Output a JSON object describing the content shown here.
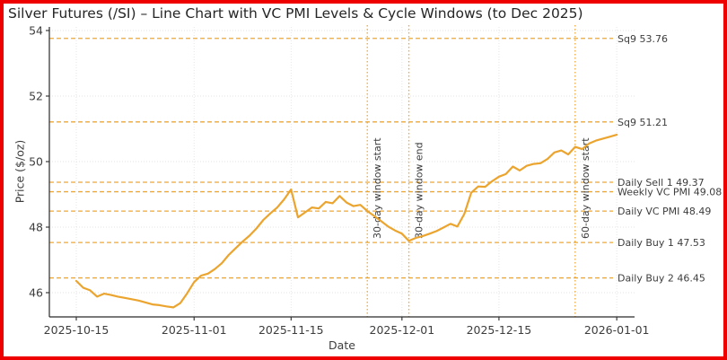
{
  "figure": {
    "border_color": "#ee0000",
    "background": "#ffffff"
  },
  "chart_data": {
    "type": "line",
    "title": "Silver Futures (/SI) – Line Chart with VC PMI Levels & Cycle Windows (to Dec 2025)",
    "xlabel": "Date",
    "ylabel": "Price ($/oz)",
    "line_color": "#eba42e",
    "level_color": "#f0a830",
    "window_color": "#f0a830",
    "text_color": "#3d3d3d",
    "grid": true,
    "legend": "none",
    "x_ticks": [
      "2025-10-15",
      "2025-11-01",
      "2025-11-15",
      "2025-12-01",
      "2025-12-15",
      "2026-01-01"
    ],
    "y_ticks": [
      46,
      48,
      50,
      52,
      54
    ],
    "xlim": [
      "2025-10-11",
      "2026-01-04"
    ],
    "ylim": [
      45.25,
      54.1
    ],
    "levels": [
      {
        "label": "Sq9 53.76",
        "value": 53.76
      },
      {
        "label": "Sq9 51.21",
        "value": 51.21
      },
      {
        "label": "Daily Sell 1 49.37",
        "value": 49.37
      },
      {
        "label": "Weekly VC PMI 49.08",
        "value": 49.08
      },
      {
        "label": "Daily VC PMI 48.49",
        "value": 48.49
      },
      {
        "label": "Daily Buy 1 47.53",
        "value": 47.53
      },
      {
        "label": "Daily Buy 2 46.45",
        "value": 46.45
      }
    ],
    "windows": [
      {
        "label": "30-day window start",
        "date": "2025-11-26"
      },
      {
        "label": "30-day window end",
        "date": "2025-12-02"
      },
      {
        "label": "60-day window start",
        "date": "2025-12-26"
      }
    ],
    "series": [
      {
        "name": "/SI",
        "points": [
          [
            "2025-10-15",
            46.36
          ],
          [
            "2025-10-16",
            46.15
          ],
          [
            "2025-10-17",
            46.07
          ],
          [
            "2025-10-18",
            45.88
          ],
          [
            "2025-10-19",
            45.97
          ],
          [
            "2025-10-20",
            45.93
          ],
          [
            "2025-10-21",
            45.88
          ],
          [
            "2025-10-22",
            45.84
          ],
          [
            "2025-10-23",
            45.8
          ],
          [
            "2025-10-24",
            45.76
          ],
          [
            "2025-10-25",
            45.7
          ],
          [
            "2025-10-26",
            45.64
          ],
          [
            "2025-10-27",
            45.62
          ],
          [
            "2025-10-28",
            45.58
          ],
          [
            "2025-10-29",
            45.55
          ],
          [
            "2025-10-30",
            45.68
          ],
          [
            "2025-10-31",
            45.98
          ],
          [
            "2025-11-01",
            46.32
          ],
          [
            "2025-11-02",
            46.52
          ],
          [
            "2025-11-03",
            46.58
          ],
          [
            "2025-11-04",
            46.72
          ],
          [
            "2025-11-05",
            46.9
          ],
          [
            "2025-11-06",
            47.15
          ],
          [
            "2025-11-07",
            47.36
          ],
          [
            "2025-11-08",
            47.56
          ],
          [
            "2025-11-09",
            47.74
          ],
          [
            "2025-11-10",
            47.96
          ],
          [
            "2025-11-11",
            48.22
          ],
          [
            "2025-11-12",
            48.42
          ],
          [
            "2025-11-13",
            48.6
          ],
          [
            "2025-11-14",
            48.85
          ],
          [
            "2025-11-15",
            49.15
          ],
          [
            "2025-11-16",
            48.3
          ],
          [
            "2025-11-17",
            48.45
          ],
          [
            "2025-11-18",
            48.6
          ],
          [
            "2025-11-19",
            48.57
          ],
          [
            "2025-11-20",
            48.77
          ],
          [
            "2025-11-21",
            48.73
          ],
          [
            "2025-11-22",
            48.95
          ],
          [
            "2025-11-23",
            48.75
          ],
          [
            "2025-11-24",
            48.64
          ],
          [
            "2025-11-25",
            48.68
          ],
          [
            "2025-11-26",
            48.49
          ],
          [
            "2025-11-27",
            48.34
          ],
          [
            "2025-11-28",
            48.18
          ],
          [
            "2025-11-29",
            48.02
          ],
          [
            "2025-11-30",
            47.9
          ],
          [
            "2025-12-01",
            47.8
          ],
          [
            "2025-12-02",
            47.58
          ],
          [
            "2025-12-03",
            47.67
          ],
          [
            "2025-12-04",
            47.73
          ],
          [
            "2025-12-05",
            47.8
          ],
          [
            "2025-12-06",
            47.88
          ],
          [
            "2025-12-07",
            47.99
          ],
          [
            "2025-12-08",
            48.1
          ],
          [
            "2025-12-09",
            48.02
          ],
          [
            "2025-12-10",
            48.4
          ],
          [
            "2025-12-11",
            49.05
          ],
          [
            "2025-12-12",
            49.24
          ],
          [
            "2025-12-13",
            49.23
          ],
          [
            "2025-12-14",
            49.4
          ],
          [
            "2025-12-15",
            49.54
          ],
          [
            "2025-12-16",
            49.62
          ],
          [
            "2025-12-17",
            49.85
          ],
          [
            "2025-12-18",
            49.73
          ],
          [
            "2025-12-19",
            49.87
          ],
          [
            "2025-12-20",
            49.93
          ],
          [
            "2025-12-21",
            49.95
          ],
          [
            "2025-12-22",
            50.08
          ],
          [
            "2025-12-23",
            50.28
          ],
          [
            "2025-12-24",
            50.34
          ],
          [
            "2025-12-25",
            50.22
          ],
          [
            "2025-12-26",
            50.45
          ],
          [
            "2025-12-27",
            50.38
          ],
          [
            "2025-12-28",
            50.55
          ],
          [
            "2025-12-29",
            50.64
          ],
          [
            "2025-12-30",
            50.7
          ],
          [
            "2025-12-31",
            50.76
          ],
          [
            "2026-01-01",
            50.82
          ]
        ]
      }
    ]
  }
}
